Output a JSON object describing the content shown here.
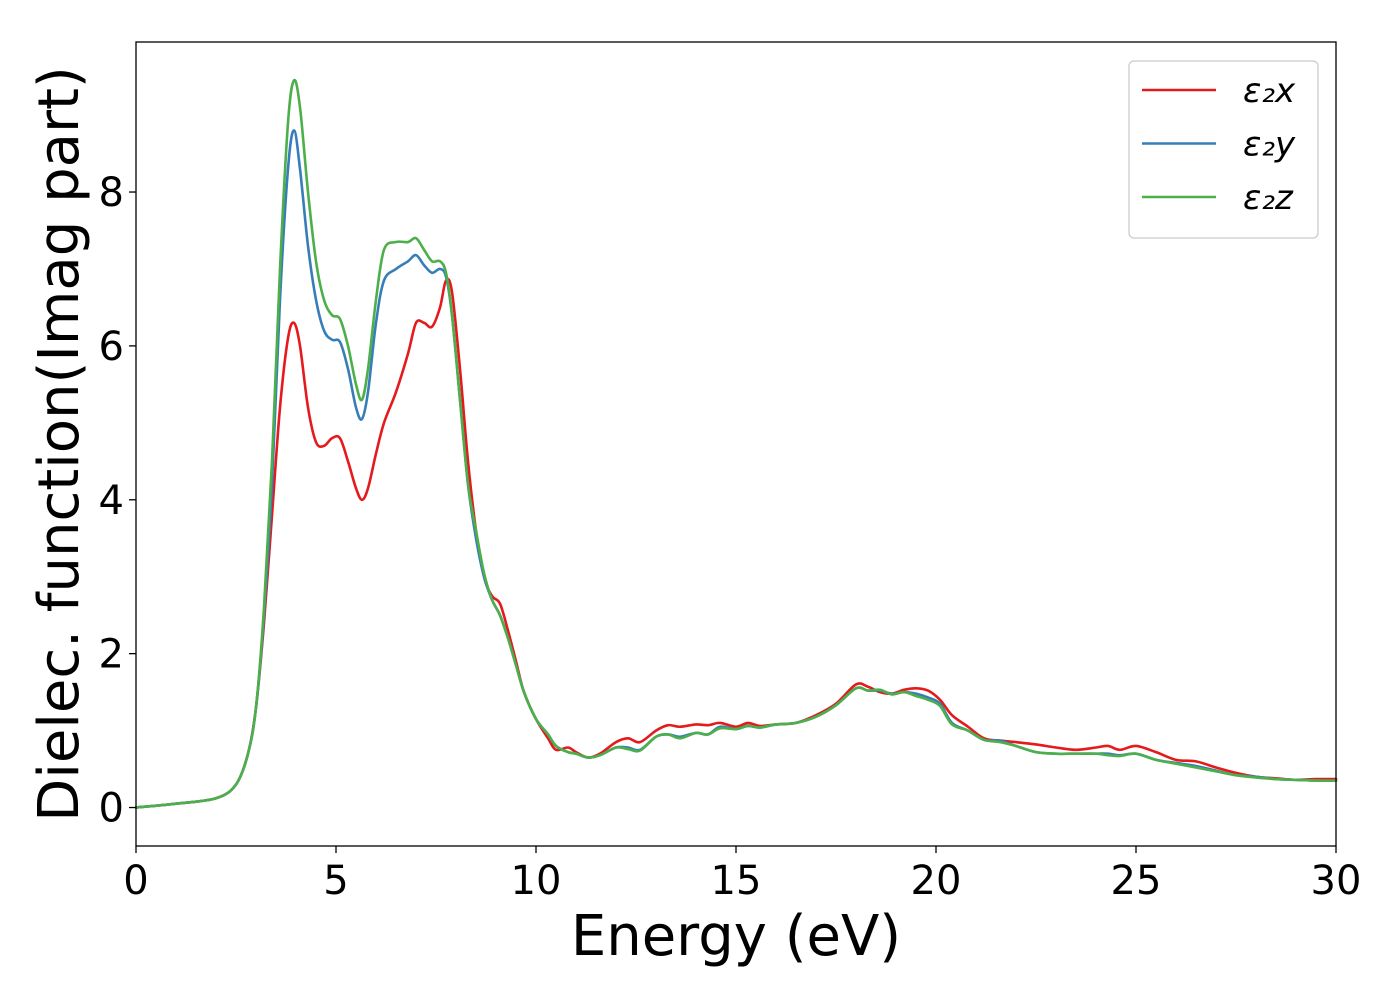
{
  "chart_data": {
    "type": "line",
    "title": "",
    "xlabel": "Energy (eV)",
    "ylabel": "Dielec. function(Imag part)",
    "xlim": [
      0,
      30
    ],
    "ylim": [
      -0.5,
      9.95
    ],
    "xticks": [
      0,
      5,
      10,
      15,
      20,
      25,
      30
    ],
    "yticks": [
      0,
      2,
      4,
      6,
      8
    ],
    "grid": false,
    "legend_position": "top-right",
    "series": [
      {
        "name": "ε₂x",
        "color": "#e41a1c",
        "x": [
          0,
          1,
          2,
          2.5,
          2.8,
          3.0,
          3.2,
          3.4,
          3.6,
          3.8,
          3.95,
          4.1,
          4.3,
          4.5,
          4.7,
          4.9,
          5.1,
          5.3,
          5.5,
          5.65,
          5.8,
          6.0,
          6.2,
          6.5,
          6.8,
          7.0,
          7.2,
          7.4,
          7.6,
          7.75,
          7.9,
          8.1,
          8.3,
          8.5,
          8.7,
          8.9,
          9.1,
          9.3,
          9.5,
          9.7,
          10.0,
          10.3,
          10.5,
          10.8,
          11.0,
          11.3,
          11.6,
          12.0,
          12.3,
          12.6,
          13.0,
          13.3,
          13.6,
          14.0,
          14.3,
          14.6,
          15.0,
          15.3,
          15.6,
          16.0,
          16.5,
          17.0,
          17.5,
          18.0,
          18.3,
          18.6,
          18.9,
          19.2,
          19.5,
          19.8,
          20.1,
          20.4,
          20.8,
          21.2,
          21.6,
          22.0,
          22.5,
          23.0,
          23.5,
          24.0,
          24.3,
          24.6,
          25.0,
          25.5,
          26.0,
          26.5,
          27.0,
          27.5,
          28.0,
          28.5,
          29.0,
          29.5,
          30
        ],
        "y": [
          0,
          0.05,
          0.12,
          0.3,
          0.7,
          1.3,
          2.4,
          3.8,
          5.2,
          6.1,
          6.3,
          6.0,
          5.2,
          4.75,
          4.7,
          4.8,
          4.8,
          4.5,
          4.15,
          4.0,
          4.15,
          4.6,
          5.0,
          5.4,
          5.9,
          6.3,
          6.3,
          6.25,
          6.5,
          6.85,
          6.7,
          5.7,
          4.5,
          3.6,
          3.0,
          2.75,
          2.65,
          2.3,
          1.9,
          1.5,
          1.15,
          0.9,
          0.75,
          0.78,
          0.72,
          0.65,
          0.7,
          0.85,
          0.9,
          0.85,
          1.0,
          1.07,
          1.05,
          1.08,
          1.07,
          1.1,
          1.05,
          1.1,
          1.06,
          1.08,
          1.1,
          1.2,
          1.35,
          1.6,
          1.57,
          1.5,
          1.48,
          1.53,
          1.55,
          1.52,
          1.4,
          1.2,
          1.05,
          0.9,
          0.87,
          0.85,
          0.82,
          0.78,
          0.75,
          0.78,
          0.8,
          0.75,
          0.8,
          0.72,
          0.62,
          0.6,
          0.52,
          0.45,
          0.4,
          0.38,
          0.36,
          0.37,
          0.37
        ]
      },
      {
        "name": "ε₂y",
        "color": "#377eb8",
        "x": [
          0,
          1,
          2,
          2.5,
          2.8,
          3.0,
          3.2,
          3.4,
          3.6,
          3.8,
          3.95,
          4.1,
          4.3,
          4.5,
          4.7,
          4.9,
          5.1,
          5.3,
          5.5,
          5.65,
          5.8,
          6.0,
          6.2,
          6.5,
          6.8,
          7.0,
          7.2,
          7.4,
          7.6,
          7.75,
          7.9,
          8.1,
          8.3,
          8.5,
          8.7,
          8.9,
          9.1,
          9.3,
          9.5,
          9.7,
          10.0,
          10.3,
          10.5,
          10.8,
          11.0,
          11.3,
          11.6,
          12.0,
          12.3,
          12.6,
          13.0,
          13.3,
          13.6,
          14.0,
          14.3,
          14.6,
          15.0,
          15.3,
          15.6,
          16.0,
          16.5,
          17.0,
          17.5,
          18.0,
          18.3,
          18.6,
          18.9,
          19.2,
          19.5,
          19.8,
          20.1,
          20.4,
          20.8,
          21.2,
          21.6,
          22.0,
          22.5,
          23.0,
          23.5,
          24.0,
          24.3,
          24.6,
          25.0,
          25.5,
          26.0,
          26.5,
          27.0,
          27.5,
          28.0,
          28.5,
          29.0,
          29.5,
          30
        ],
        "y": [
          0,
          0.05,
          0.12,
          0.3,
          0.7,
          1.3,
          2.5,
          4.2,
          6.6,
          8.3,
          8.8,
          8.3,
          7.3,
          6.6,
          6.2,
          6.08,
          6.05,
          5.7,
          5.2,
          5.05,
          5.4,
          6.3,
          6.85,
          7.0,
          7.1,
          7.18,
          7.05,
          6.95,
          7.0,
          6.9,
          6.4,
          5.3,
          4.2,
          3.5,
          3.0,
          2.7,
          2.5,
          2.2,
          1.85,
          1.5,
          1.15,
          0.95,
          0.8,
          0.72,
          0.7,
          0.65,
          0.68,
          0.78,
          0.78,
          0.75,
          0.92,
          0.95,
          0.92,
          0.97,
          0.95,
          1.05,
          1.02,
          1.06,
          1.04,
          1.08,
          1.1,
          1.18,
          1.33,
          1.55,
          1.52,
          1.52,
          1.48,
          1.5,
          1.48,
          1.43,
          1.35,
          1.1,
          1.0,
          0.88,
          0.87,
          0.8,
          0.72,
          0.7,
          0.7,
          0.7,
          0.7,
          0.68,
          0.7,
          0.62,
          0.58,
          0.54,
          0.48,
          0.42,
          0.4,
          0.37,
          0.36,
          0.35,
          0.35
        ]
      },
      {
        "name": "ε₂z",
        "color": "#4daf4a",
        "x": [
          0,
          1,
          2,
          2.5,
          2.8,
          3.0,
          3.2,
          3.4,
          3.6,
          3.8,
          3.95,
          4.1,
          4.3,
          4.5,
          4.7,
          4.9,
          5.1,
          5.3,
          5.5,
          5.65,
          5.8,
          6.0,
          6.2,
          6.5,
          6.8,
          7.0,
          7.2,
          7.4,
          7.6,
          7.75,
          7.9,
          8.1,
          8.3,
          8.5,
          8.7,
          8.9,
          9.1,
          9.3,
          9.5,
          9.7,
          10.0,
          10.3,
          10.5,
          10.8,
          11.0,
          11.3,
          11.6,
          12.0,
          12.3,
          12.6,
          13.0,
          13.3,
          13.6,
          14.0,
          14.3,
          14.6,
          15.0,
          15.3,
          15.6,
          16.0,
          16.5,
          17.0,
          17.5,
          18.0,
          18.3,
          18.6,
          18.9,
          19.2,
          19.5,
          19.8,
          20.1,
          20.4,
          20.8,
          21.2,
          21.6,
          22.0,
          22.5,
          23.0,
          23.5,
          24.0,
          24.3,
          24.6,
          25.0,
          25.5,
          26.0,
          26.5,
          27.0,
          27.5,
          28.0,
          28.5,
          29.0,
          29.5,
          30
        ],
        "y": [
          0,
          0.05,
          0.12,
          0.3,
          0.7,
          1.3,
          2.6,
          4.5,
          7.0,
          8.9,
          9.45,
          9.1,
          8.0,
          7.1,
          6.6,
          6.4,
          6.35,
          6.0,
          5.5,
          5.3,
          5.7,
          6.6,
          7.25,
          7.35,
          7.35,
          7.4,
          7.25,
          7.1,
          7.1,
          6.95,
          6.4,
          5.3,
          4.2,
          3.6,
          3.05,
          2.7,
          2.5,
          2.2,
          1.85,
          1.5,
          1.15,
          0.95,
          0.8,
          0.72,
          0.7,
          0.65,
          0.68,
          0.78,
          0.76,
          0.74,
          0.92,
          0.95,
          0.9,
          0.97,
          0.95,
          1.03,
          1.02,
          1.06,
          1.04,
          1.08,
          1.1,
          1.18,
          1.33,
          1.55,
          1.52,
          1.53,
          1.47,
          1.5,
          1.45,
          1.4,
          1.32,
          1.08,
          1.0,
          0.88,
          0.85,
          0.8,
          0.72,
          0.7,
          0.7,
          0.7,
          0.68,
          0.67,
          0.7,
          0.62,
          0.57,
          0.52,
          0.47,
          0.42,
          0.39,
          0.37,
          0.36,
          0.35,
          0.35
        ]
      }
    ]
  }
}
